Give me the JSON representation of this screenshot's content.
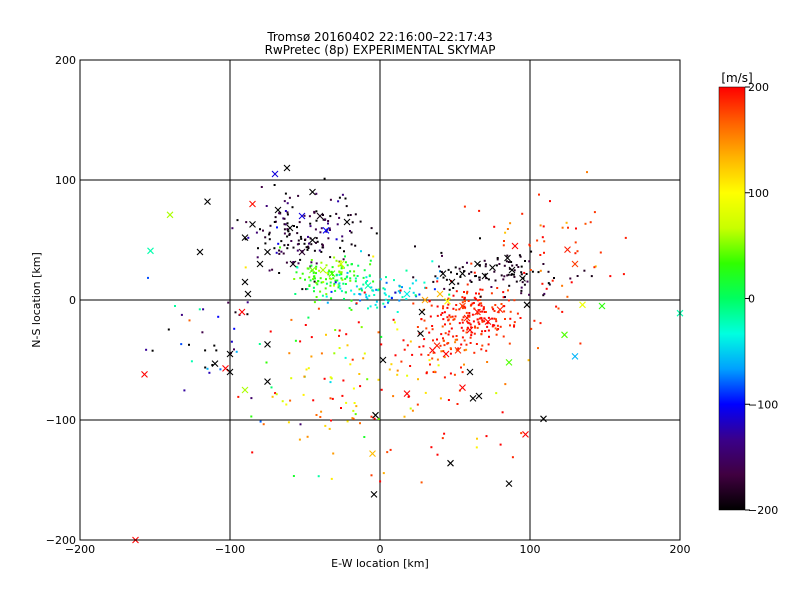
{
  "chart_data": {
    "type": "scatter",
    "title": "Tromsø 20160402 22:16:00–22:17:43",
    "subtitle": "RwPretec (8p) EXPERIMENTAL SKYMAP",
    "xlabel": "E-W location [km]",
    "ylabel": "N-S location [km]",
    "xlim": [
      -200,
      200
    ],
    "ylim": [
      -200,
      200
    ],
    "x_ticks": [
      -200,
      -100,
      0,
      100,
      200
    ],
    "y_ticks": [
      -200,
      -100,
      0,
      100,
      200
    ],
    "grid": true,
    "colorbar": {
      "label": "[m/s]",
      "range": [
        -200,
        200
      ],
      "ticks": [
        200,
        100,
        0,
        -100,
        -200
      ],
      "colormap": [
        "#000000",
        "#400040",
        "#3a008a",
        "#0000ff",
        "#00a0ff",
        "#00ffe0",
        "#00ff60",
        "#30ff00",
        "#c8ff00",
        "#ffff00",
        "#ffb400",
        "#ff6000",
        "#ff0000"
      ]
    },
    "clusters": [
      {
        "x": -50,
        "y": 55,
        "dx": 18,
        "dy": 16,
        "n": 160,
        "v": -180,
        "vs": 30
      },
      {
        "x": -30,
        "y": 20,
        "dx": 12,
        "dy": 9,
        "n": 110,
        "v": 30,
        "vs": 25
      },
      {
        "x": 0,
        "y": 7,
        "dx": 20,
        "dy": 8,
        "n": 90,
        "v": -40,
        "vs": 25
      },
      {
        "x": 62,
        "y": -12,
        "dx": 16,
        "dy": 12,
        "n": 200,
        "v": 190,
        "vs": 12
      },
      {
        "x": 80,
        "y": 22,
        "dx": 26,
        "dy": 9,
        "n": 100,
        "v": -190,
        "vs": 15
      },
      {
        "x": 40,
        "y": -45,
        "dx": 14,
        "dy": 10,
        "n": 45,
        "v": 185,
        "vs": 20
      },
      {
        "x": 115,
        "y": 45,
        "dx": 30,
        "dy": 28,
        "n": 50,
        "v": 180,
        "vs": 20
      },
      {
        "x": -20,
        "y": -60,
        "dx": 40,
        "dy": 40,
        "n": 120,
        "v": 120,
        "vs": 90
      },
      {
        "x": -110,
        "y": -40,
        "dx": 20,
        "dy": 25,
        "n": 35,
        "v": -150,
        "vs": 70
      },
      {
        "x": 40,
        "y": -90,
        "dx": 40,
        "dy": 40,
        "n": 30,
        "v": 180,
        "vs": 40
      }
    ],
    "x_markers": [
      {
        "x": -60,
        "y": 60,
        "v": -200
      },
      {
        "x": -68,
        "y": 75,
        "v": -200
      },
      {
        "x": -45,
        "y": 50,
        "v": -200
      },
      {
        "x": -75,
        "y": 40,
        "v": -200
      },
      {
        "x": -40,
        "y": 70,
        "v": -190
      },
      {
        "x": -52,
        "y": 40,
        "v": -180
      },
      {
        "x": -85,
        "y": 63,
        "v": -200
      },
      {
        "x": -90,
        "y": 52,
        "v": -200
      },
      {
        "x": -58,
        "y": 30,
        "v": -190
      },
      {
        "x": -70,
        "y": 105,
        "v": -110
      },
      {
        "x": -45,
        "y": 90,
        "v": -200
      },
      {
        "x": -115,
        "y": 82,
        "v": -200
      },
      {
        "x": -80,
        "y": 30,
        "v": -200
      },
      {
        "x": -90,
        "y": 15,
        "v": -200
      },
      {
        "x": -120,
        "y": 40,
        "v": -200
      },
      {
        "x": -22,
        "y": 65,
        "v": -200
      },
      {
        "x": -62,
        "y": 110,
        "v": -200
      },
      {
        "x": -85,
        "y": 80,
        "v": 195
      },
      {
        "x": -88,
        "y": 5,
        "v": -200
      },
      {
        "x": -36,
        "y": 58,
        "v": -100
      },
      {
        "x": -52,
        "y": 70,
        "v": -110
      },
      {
        "x": -140,
        "y": 71,
        "v": 60
      },
      {
        "x": -153,
        "y": 41,
        "v": -20
      },
      {
        "x": -32,
        "y": 22,
        "v": 40
      },
      {
        "x": -38,
        "y": 25,
        "v": 60
      },
      {
        "x": -26,
        "y": 30,
        "v": 70
      },
      {
        "x": -45,
        "y": 25,
        "v": 50
      },
      {
        "x": -8,
        "y": 12,
        "v": -20
      },
      {
        "x": 18,
        "y": 5,
        "v": -40
      },
      {
        "x": 30,
        "y": 0,
        "v": 140
      },
      {
        "x": 40,
        "y": 5,
        "v": 130
      },
      {
        "x": 28,
        "y": -10,
        "v": -200
      },
      {
        "x": 45,
        "y": -1,
        "v": 100
      },
      {
        "x": 58,
        "y": -15,
        "v": 190
      },
      {
        "x": 65,
        "y": -10,
        "v": 195
      },
      {
        "x": 72,
        "y": -18,
        "v": 200
      },
      {
        "x": 55,
        "y": -5,
        "v": 180
      },
      {
        "x": 80,
        "y": -8,
        "v": 190
      },
      {
        "x": 60,
        "y": -25,
        "v": 200
      },
      {
        "x": 48,
        "y": 15,
        "v": -200
      },
      {
        "x": 55,
        "y": 22,
        "v": -200
      },
      {
        "x": 65,
        "y": 30,
        "v": -200
      },
      {
        "x": 75,
        "y": 27,
        "v": -200
      },
      {
        "x": 88,
        "y": 25,
        "v": -200
      },
      {
        "x": 95,
        "y": 18,
        "v": -200
      },
      {
        "x": 85,
        "y": 35,
        "v": -200
      },
      {
        "x": 70,
        "y": 20,
        "v": -200
      },
      {
        "x": 42,
        "y": 22,
        "v": -200
      },
      {
        "x": 90,
        "y": 45,
        "v": 200
      },
      {
        "x": 125,
        "y": 42,
        "v": 190
      },
      {
        "x": 130,
        "y": 30,
        "v": 180
      },
      {
        "x": 135,
        "y": -4,
        "v": 90
      },
      {
        "x": 148,
        "y": -5,
        "v": 30
      },
      {
        "x": 123,
        "y": -29,
        "v": 40
      },
      {
        "x": 130,
        "y": -47,
        "v": -60
      },
      {
        "x": 200,
        "y": -11,
        "v": -20
      },
      {
        "x": 86,
        "y": -52,
        "v": 40
      },
      {
        "x": 98,
        "y": -4,
        "v": -200
      },
      {
        "x": 97,
        "y": -112,
        "v": 200
      },
      {
        "x": 109,
        "y": -99,
        "v": -200
      },
      {
        "x": 86,
        "y": -153,
        "v": -200
      },
      {
        "x": 47,
        "y": -136,
        "v": -200
      },
      {
        "x": -4,
        "y": -162,
        "v": -200
      },
      {
        "x": 38,
        "y": -38,
        "v": 190
      },
      {
        "x": 44,
        "y": -45,
        "v": 200
      },
      {
        "x": 52,
        "y": -42,
        "v": 185
      },
      {
        "x": 35,
        "y": -42,
        "v": 200
      },
      {
        "x": 60,
        "y": -60,
        "v": -200
      },
      {
        "x": 62,
        "y": -82,
        "v": -200
      },
      {
        "x": 66,
        "y": -80,
        "v": -200
      },
      {
        "x": 55,
        "y": -73,
        "v": 200
      },
      {
        "x": 18,
        "y": -78,
        "v": 200
      },
      {
        "x": 2,
        "y": -50,
        "v": -200
      },
      {
        "x": 27,
        "y": -28,
        "v": -200
      },
      {
        "x": -92,
        "y": -10,
        "v": 200
      },
      {
        "x": -75,
        "y": -37,
        "v": -200
      },
      {
        "x": -110,
        "y": -53,
        "v": -200
      },
      {
        "x": -100,
        "y": -45,
        "v": -200
      },
      {
        "x": -103,
        "y": -57,
        "v": 200
      },
      {
        "x": -75,
        "y": -68,
        "v": -200
      },
      {
        "x": -90,
        "y": -75,
        "v": 60
      },
      {
        "x": -157,
        "y": -62,
        "v": 200
      },
      {
        "x": -163,
        "y": -200,
        "v": 200
      },
      {
        "x": -3,
        "y": -96,
        "v": -200
      },
      {
        "x": -100,
        "y": -60,
        "v": -200
      },
      {
        "x": -5,
        "y": -128,
        "v": 130
      }
    ]
  }
}
